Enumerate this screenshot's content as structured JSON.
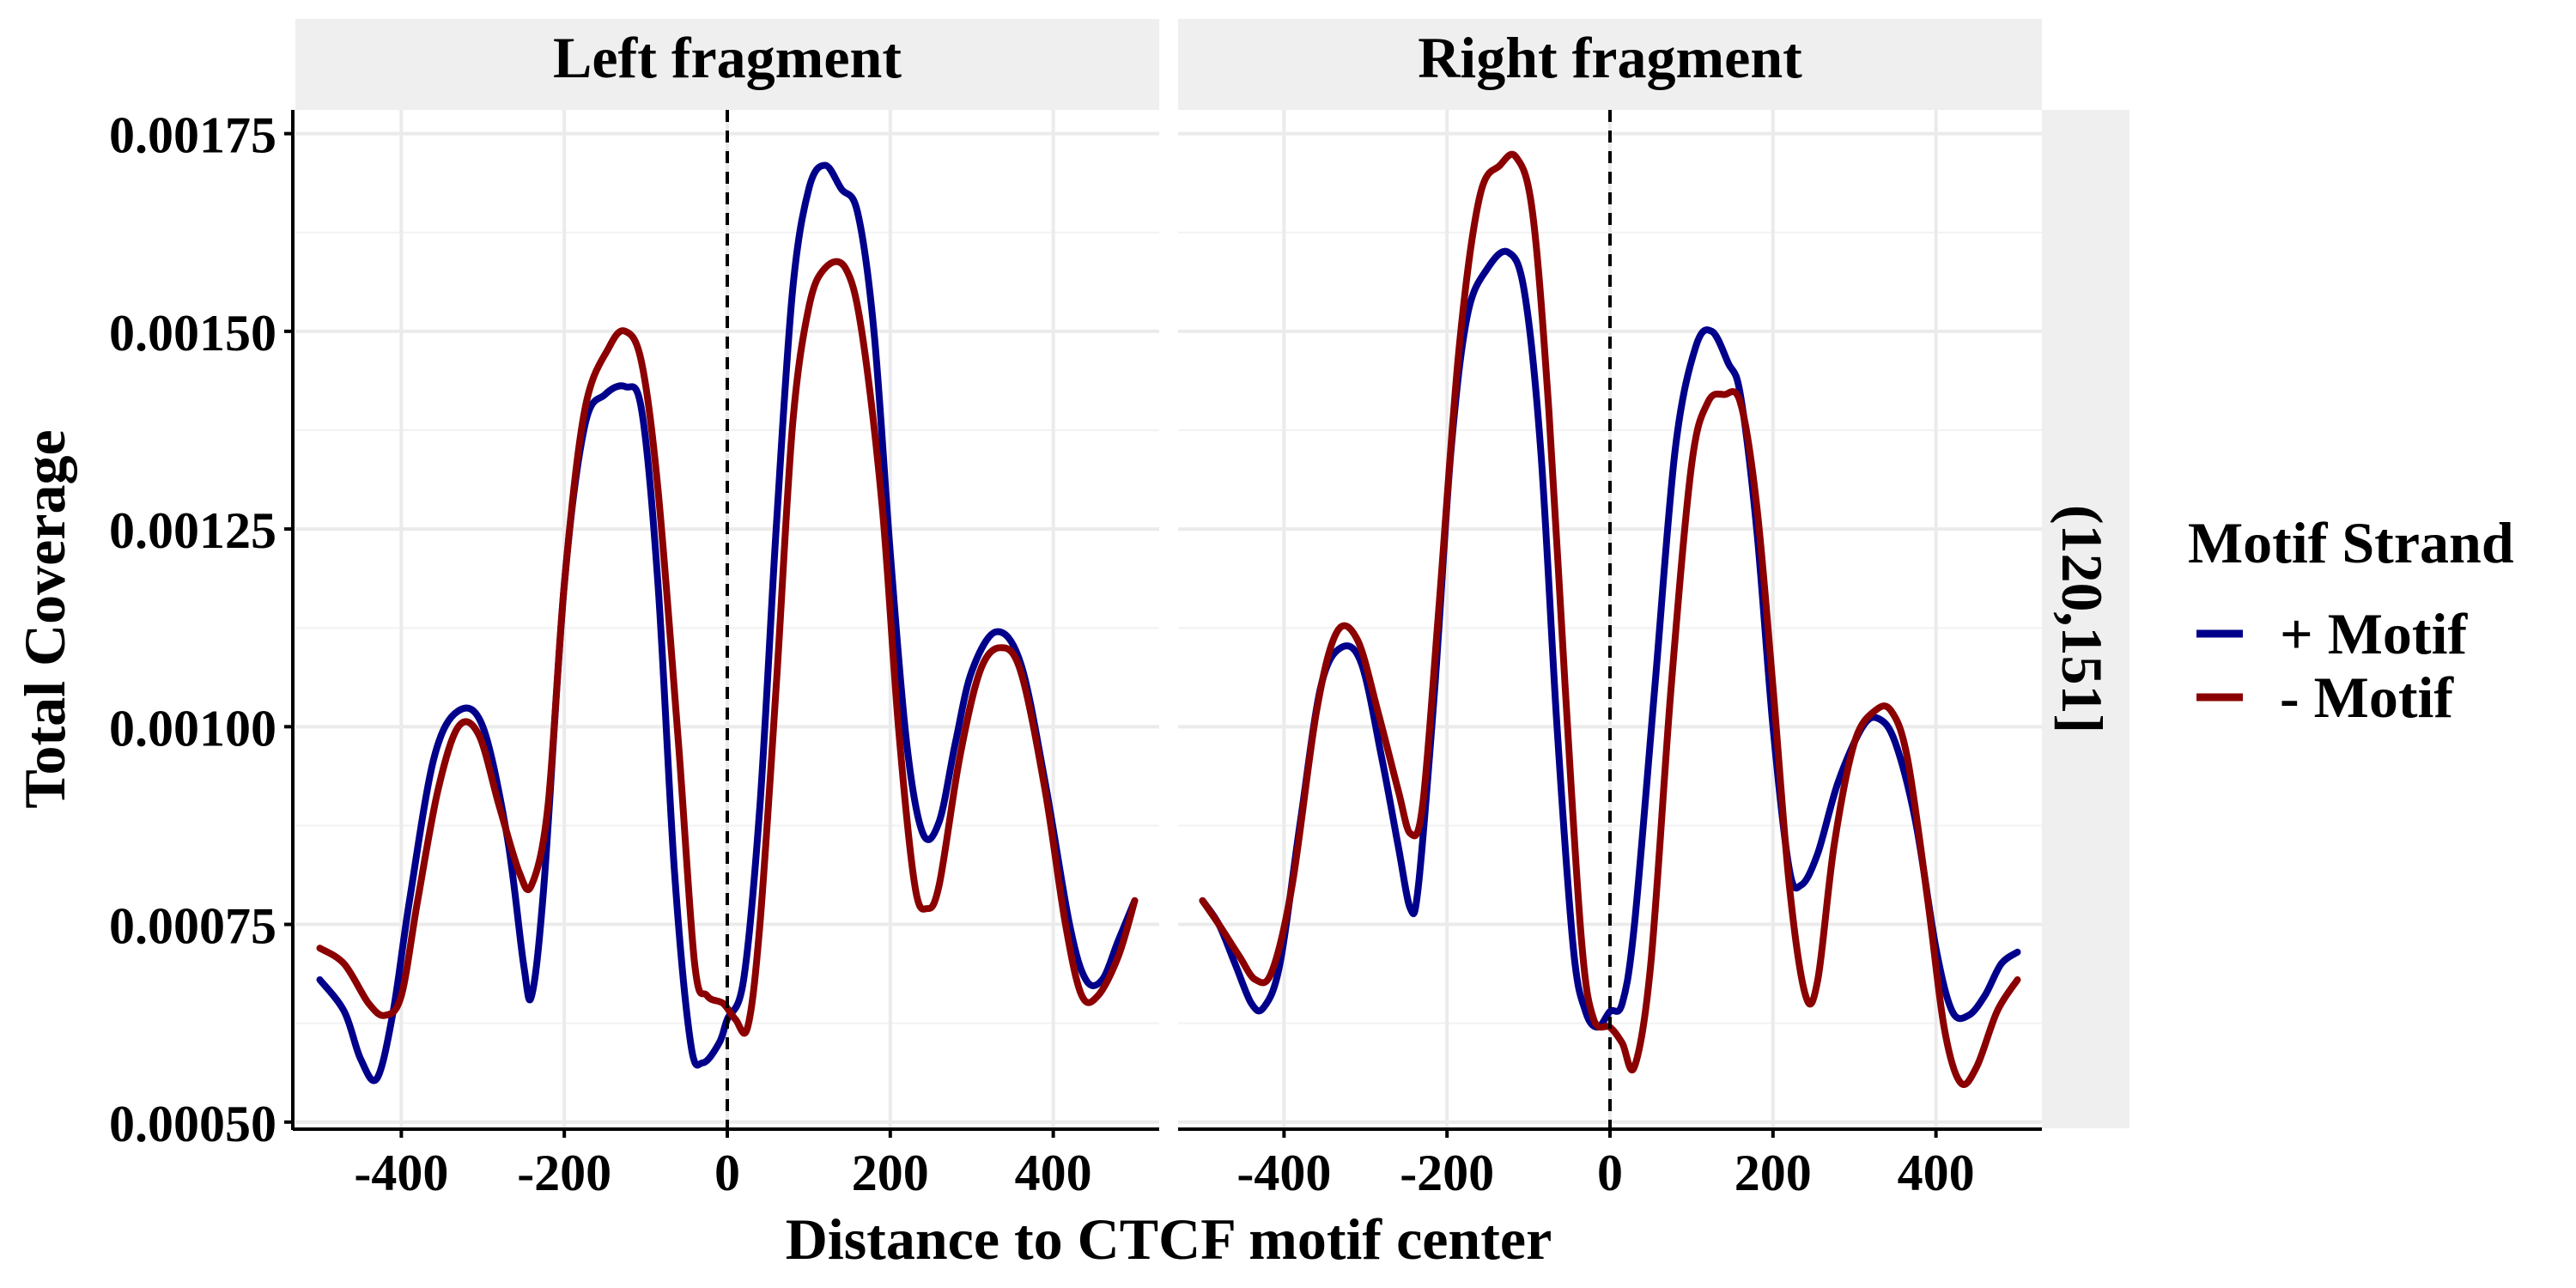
{
  "chart_data": {
    "type": "line",
    "xlabel": "Distance to CTCF motif center",
    "ylabel": "Total Coverage",
    "xlim": [
      -530,
      530
    ],
    "ylim": [
      0.00049,
      0.00178
    ],
    "x_ticks": [
      -400,
      -200,
      0,
      200,
      400
    ],
    "x_tick_labels": [
      "-400",
      "-200",
      "0",
      "200",
      "400"
    ],
    "y_ticks": [
      0.0005,
      0.00075,
      0.001,
      0.00125,
      0.0015,
      0.00175
    ],
    "y_tick_labels": [
      "0.00050",
      "0.00075",
      "0.00100",
      "0.00125",
      "0.00150",
      "0.00175"
    ],
    "grid": true,
    "reference_line_x": 0,
    "row_strip_label": "(120,151]",
    "legend": {
      "title": "Motif Strand",
      "position": "right",
      "items": [
        {
          "label": "+ Motif",
          "color": "#00008B"
        },
        {
          "label": "- Motif",
          "color": "#8B0000"
        }
      ]
    },
    "panels": [
      {
        "title": "Left fragment",
        "series": [
          {
            "name": "+ Motif",
            "color": "#00008B",
            "points": [
              [
                -500,
                0.00068
              ],
              [
                -470,
                0.00064
              ],
              [
                -450,
                0.00058
              ],
              [
                -430,
                0.000555
              ],
              [
                -410,
                0.00064
              ],
              [
                -390,
                0.00078
              ],
              [
                -360,
                0.00096
              ],
              [
                -330,
                0.00102
              ],
              [
                -300,
                0.001
              ],
              [
                -270,
                0.00086
              ],
              [
                -250,
                0.0007
              ],
              [
                -240,
                0.00066
              ],
              [
                -225,
                0.0008
              ],
              [
                -200,
                0.00118
              ],
              [
                -175,
                0.00138
              ],
              [
                -150,
                0.00142
              ],
              [
                -125,
                0.00143
              ],
              [
                -105,
                0.0014
              ],
              [
                -85,
                0.00118
              ],
              [
                -65,
                0.00082
              ],
              [
                -45,
                0.0006
              ],
              [
                -30,
                0.000575
              ],
              [
                -10,
                0.0006
              ],
              [
                0,
                0.00063
              ],
              [
                20,
                0.00068
              ],
              [
                40,
                0.0009
              ],
              [
                60,
                0.00125
              ],
              [
                80,
                0.00155
              ],
              [
                100,
                0.00168
              ],
              [
                120,
                0.00171
              ],
              [
                140,
                0.00168
              ],
              [
                160,
                0.00165
              ],
              [
                180,
                0.0015
              ],
              [
                200,
                0.00122
              ],
              [
                220,
                0.00098
              ],
              [
                240,
                0.000865
              ],
              [
                260,
                0.00088
              ],
              [
                280,
                0.00098
              ],
              [
                300,
                0.00107
              ],
              [
                330,
                0.00112
              ],
              [
                360,
                0.00108
              ],
              [
                390,
                0.00093
              ],
              [
                420,
                0.00075
              ],
              [
                440,
                0.00068
              ],
              [
                460,
                0.00068
              ],
              [
                480,
                0.00073
              ],
              [
                500,
                0.00078
              ]
            ]
          },
          {
            "name": "- Motif",
            "color": "#8B0000",
            "points": [
              [
                -500,
                0.00072
              ],
              [
                -470,
                0.0007
              ],
              [
                -440,
                0.00065
              ],
              [
                -420,
                0.000635
              ],
              [
                -400,
                0.00066
              ],
              [
                -380,
                0.00078
              ],
              [
                -355,
                0.00092
              ],
              [
                -330,
                0.001
              ],
              [
                -305,
                0.00099
              ],
              [
                -280,
                0.0009
              ],
              [
                -255,
                0.000815
              ],
              [
                -240,
                0.0008
              ],
              [
                -220,
                0.0009
              ],
              [
                -200,
                0.00118
              ],
              [
                -175,
                0.0014
              ],
              [
                -145,
                0.00148
              ],
              [
                -125,
                0.0015
              ],
              [
                -105,
                0.00146
              ],
              [
                -85,
                0.0013
              ],
              [
                -60,
                0.00098
              ],
              [
                -40,
                0.0007
              ],
              [
                -25,
                0.00066
              ],
              [
                -5,
                0.00065
              ],
              [
                10,
                0.00063
              ],
              [
                25,
                0.00062
              ],
              [
                40,
                0.00075
              ],
              [
                60,
                0.00105
              ],
              [
                80,
                0.00138
              ],
              [
                100,
                0.00153
              ],
              [
                120,
                0.00158
              ],
              [
                145,
                0.00158
              ],
              [
                165,
                0.0015
              ],
              [
                190,
                0.00128
              ],
              [
                210,
                0.001
              ],
              [
                230,
                0.0008
              ],
              [
                245,
                0.00077
              ],
              [
                260,
                0.0008
              ],
              [
                285,
                0.00096
              ],
              [
                310,
                0.00107
              ],
              [
                335,
                0.0011
              ],
              [
                360,
                0.00107
              ],
              [
                390,
                0.00092
              ],
              [
                415,
                0.00075
              ],
              [
                435,
                0.00066
              ],
              [
                455,
                0.00066
              ],
              [
                480,
                0.00071
              ],
              [
                500,
                0.00078
              ]
            ]
          }
        ]
      },
      {
        "title": "Right fragment",
        "series": [
          {
            "name": "+ Motif",
            "color": "#00008B",
            "points": [
              [
                -500,
                0.00078
              ],
              [
                -480,
                0.00075
              ],
              [
                -460,
                0.0007
              ],
              [
                -440,
                0.00065
              ],
              [
                -425,
                0.000645
              ],
              [
                -405,
                0.0007
              ],
              [
                -380,
                0.00088
              ],
              [
                -355,
                0.00105
              ],
              [
                -330,
                0.0011
              ],
              [
                -305,
                0.00108
              ],
              [
                -280,
                0.00096
              ],
              [
                -260,
                0.00085
              ],
              [
                -245,
                0.00077
              ],
              [
                -235,
                0.0008
              ],
              [
                -215,
                0.00105
              ],
              [
                -195,
                0.00135
              ],
              [
                -175,
                0.00152
              ],
              [
                -150,
                0.00158
              ],
              [
                -125,
                0.0016
              ],
              [
                -105,
                0.00155
              ],
              [
                -85,
                0.00135
              ],
              [
                -65,
                0.001
              ],
              [
                -45,
                0.00072
              ],
              [
                -30,
                0.00064
              ],
              [
                -15,
                0.00062
              ],
              [
                0,
                0.00064
              ],
              [
                15,
                0.00065
              ],
              [
                30,
                0.00075
              ],
              [
                55,
                0.00105
              ],
              [
                80,
                0.00135
              ],
              [
                105,
                0.00148
              ],
              [
                125,
                0.0015
              ],
              [
                145,
                0.00146
              ],
              [
                160,
                0.00142
              ],
              [
                180,
                0.00125
              ],
              [
                200,
                0.001
              ],
              [
                220,
                0.00082
              ],
              [
                235,
                0.0008
              ],
              [
                255,
                0.00084
              ],
              [
                280,
                0.00093
              ],
              [
                310,
                0.001
              ],
              [
                330,
                0.00101
              ],
              [
                350,
                0.00098
              ],
              [
                375,
                0.00088
              ],
              [
                400,
                0.00072
              ],
              [
                420,
                0.00064
              ],
              [
                440,
                0.000635
              ],
              [
                460,
                0.00066
              ],
              [
                480,
                0.0007
              ],
              [
                500,
                0.000715
              ]
            ]
          },
          {
            "name": "- Motif",
            "color": "#8B0000",
            "points": [
              [
                -500,
                0.00078
              ],
              [
                -480,
                0.00075
              ],
              [
                -455,
                0.00071
              ],
              [
                -435,
                0.00068
              ],
              [
                -415,
                0.00069
              ],
              [
                -390,
                0.0008
              ],
              [
                -360,
                0.00102
              ],
              [
                -335,
                0.00112
              ],
              [
                -310,
                0.00111
              ],
              [
                -285,
                0.00102
              ],
              [
                -260,
                0.00092
              ],
              [
                -245,
                0.000865
              ],
              [
                -230,
                0.0009
              ],
              [
                -210,
                0.00115
              ],
              [
                -185,
                0.00148
              ],
              [
                -160,
                0.00167
              ],
              [
                -135,
                0.00171
              ],
              [
                -115,
                0.00172
              ],
              [
                -95,
                0.00165
              ],
              [
                -75,
                0.0014
              ],
              [
                -55,
                0.00105
              ],
              [
                -35,
                0.00073
              ],
              [
                -20,
                0.00063
              ],
              [
                0,
                0.00062
              ],
              [
                15,
                0.0006
              ],
              [
                30,
                0.00057
              ],
              [
                50,
                0.0007
              ],
              [
                75,
                0.00105
              ],
              [
                100,
                0.00133
              ],
              [
                120,
                0.00141
              ],
              [
                140,
                0.00142
              ],
              [
                160,
                0.00141
              ],
              [
                180,
                0.00128
              ],
              [
                200,
                0.00105
              ],
              [
                220,
                0.0008
              ],
              [
                240,
                0.00066
              ],
              [
                255,
                0.00068
              ],
              [
                275,
                0.00085
              ],
              [
                300,
                0.00098
              ],
              [
                325,
                0.00102
              ],
              [
                345,
                0.00102
              ],
              [
                365,
                0.00096
              ],
              [
                390,
                0.00078
              ],
              [
                410,
                0.00062
              ],
              [
                430,
                0.00055
              ],
              [
                450,
                0.00057
              ],
              [
                475,
                0.00064
              ],
              [
                500,
                0.00068
              ]
            ]
          }
        ]
      }
    ]
  }
}
